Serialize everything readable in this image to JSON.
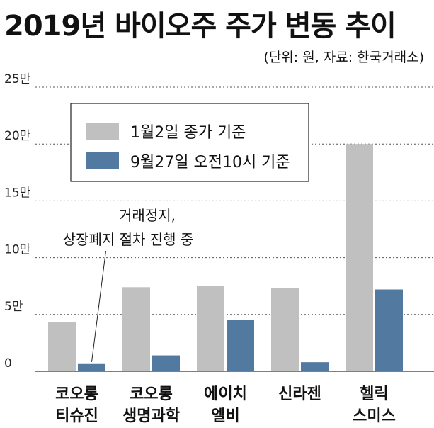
{
  "header": {
    "title": "2019년 바이오주 주가 변동 추이",
    "unit_note": "(단위: 원, 자료: 한국거래소)"
  },
  "chart_data": {
    "type": "bar",
    "title": "2019년 바이오주 주가 변동 추이",
    "ylim": [
      0,
      250000
    ],
    "yticks": [
      {
        "value": 0,
        "label": "0"
      },
      {
        "value": 50000,
        "label": "5만"
      },
      {
        "value": 100000,
        "label": "10만"
      },
      {
        "value": 150000,
        "label": "15만"
      },
      {
        "value": 200000,
        "label": "20만"
      },
      {
        "value": 250000,
        "label": "25만"
      }
    ],
    "grid": true,
    "legend_position": "top-center",
    "categories": [
      {
        "line1": "코오롱",
        "line2": "티슈진"
      },
      {
        "line1": "코오롱",
        "line2": "생명과학"
      },
      {
        "line1": "에이치",
        "line2": "엘비"
      },
      {
        "line1": "신라젠",
        "line2": ""
      },
      {
        "line1": "헬릭",
        "line2": "스미스"
      }
    ],
    "series": [
      {
        "name": "1월2일 종가 기준",
        "color": "#c0c0c0",
        "values": [
          43000,
          74000,
          75000,
          73000,
          200000
        ]
      },
      {
        "name": "9월27일 오전10시 기준",
        "color": "#52799f",
        "values": [
          7000,
          14000,
          45000,
          8000,
          72000
        ]
      }
    ],
    "annotation": {
      "line1": "거래정지,",
      "line2": "상장폐지 절차 진행 중",
      "category_index": 0,
      "series_index": 1
    }
  }
}
